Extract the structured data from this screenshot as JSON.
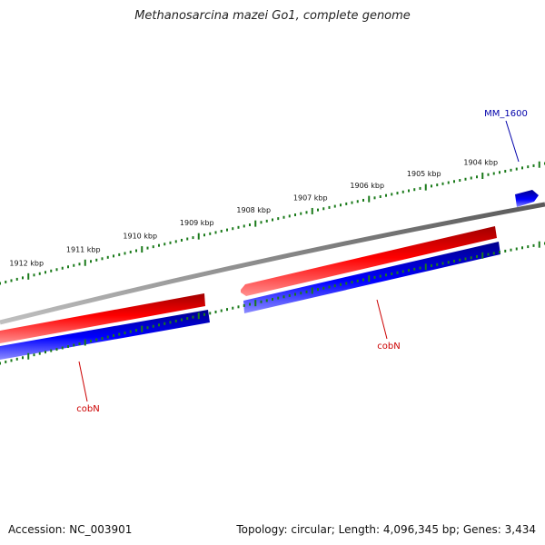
{
  "title": "Methanosarcina mazei Go1, complete genome",
  "footer": {
    "accession": "Accession: NC_003901",
    "topology": "Topology: circular; Length: 4,096,345 bp; Genes: 3,434"
  },
  "ruler": {
    "unit": "kbp",
    "tick_labels": [
      "1912 kbp",
      "1911 kbp",
      "1910 kbp",
      "1909 kbp",
      "1908 kbp",
      "1907 kbp",
      "1906 kbp",
      "1905 kbp",
      "1904 kbp"
    ]
  },
  "features": [
    {
      "name": "cobN",
      "strand": "minus",
      "color": "#cc0000",
      "segment": "left"
    },
    {
      "name": "cobN",
      "strand": "minus",
      "color": "#cc0000",
      "segment": "right"
    },
    {
      "name": "MM_1600",
      "strand": "plus",
      "color": "#0000aa"
    }
  ],
  "colors": {
    "backbone": "#808080",
    "forward_gene": "#0000dd",
    "reverse_gene": "#dd0000",
    "tick": "#1a7a1a"
  }
}
